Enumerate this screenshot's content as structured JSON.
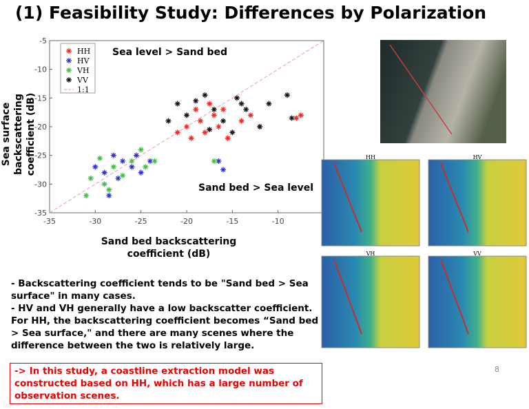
{
  "title": "(1) Feasibility Study: Differences by Polarization",
  "chart_data": {
    "type": "scatter",
    "y_label": "Sea surface backscattering coefficient (dB)",
    "x_label": "Sand bed backscattering coefficient (dB)",
    "annotations": [
      "Sea level > Sand bed",
      "Sand bed > Sea level"
    ],
    "xlim": [
      -35,
      -5
    ],
    "ylim": [
      -35,
      -5
    ],
    "xticks": [
      -35,
      -30,
      -25,
      -20,
      -15,
      -10
    ],
    "yticks": [
      -35,
      -30,
      -25,
      -20,
      -15,
      -10,
      -5
    ],
    "reference_line": {
      "name": "1:1",
      "color": "#e8a0a0"
    },
    "series": [
      {
        "name": "HH",
        "color": "#ff2020",
        "x": [
          -20,
          -19,
          -18.5,
          -18,
          -17,
          -16.5,
          -16,
          -15.5,
          -14,
          -13,
          -19.5,
          -17.5,
          -8,
          -7.5,
          -12,
          -21
        ],
        "values": [
          -20,
          -17,
          -19,
          -21,
          -18,
          -20,
          -17,
          -22,
          -19,
          -18,
          -22,
          -16,
          -18.5,
          -18,
          -20,
          -21
        ]
      },
      {
        "name": "HV",
        "color": "#3030d0",
        "x": [
          -30,
          -29,
          -28,
          -27.5,
          -27,
          -26,
          -25.5,
          -25,
          -24,
          -28.5,
          -16.5,
          -16
        ],
        "values": [
          -27,
          -28,
          -25,
          -29,
          -26,
          -27,
          -25,
          -28,
          -26,
          -32,
          -26,
          -27.5
        ]
      },
      {
        "name": "VH",
        "color": "#40c040",
        "x": [
          -31,
          -30.5,
          -29.5,
          -29,
          -28,
          -27,
          -26,
          -25,
          -24.5,
          -23.5,
          -28.5,
          -17
        ],
        "values": [
          -32,
          -29,
          -25.5,
          -30,
          -27,
          -28.5,
          -26,
          -24,
          -27,
          -26,
          -31,
          -26
        ]
      },
      {
        "name": "VV",
        "color": "#111111",
        "x": [
          -22,
          -21,
          -20,
          -19,
          -18,
          -17,
          -16,
          -15,
          -14,
          -13.5,
          -12,
          -11,
          -9,
          -8.5,
          -17.5,
          -14.5
        ],
        "values": [
          -19,
          -16,
          -18,
          -15.5,
          -14.5,
          -17,
          -19,
          -21,
          -16,
          -17,
          -20,
          -16,
          -14.5,
          -18.5,
          -20.5,
          -15
        ]
      }
    ]
  },
  "images": {
    "labels": [
      "HH",
      "HV",
      "VH",
      "VV"
    ]
  },
  "bullets": [
    "- Backscattering coefficient tends to be \"Sand bed > Sea surface\" in many cases.",
    "- HV and VH generally have a low backscatter coefficient. For HH, the backscattering coefficient becomes “Sand bed > Sea surface,\" and there are many scenes where the difference between the two is relatively large."
  ],
  "conclusion": "-> In this study, a coastline extraction model was constructed based on HH, which has a large number of observation scenes.",
  "page_number": "8"
}
